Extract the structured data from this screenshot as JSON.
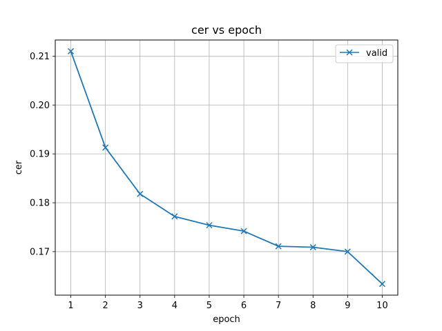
{
  "chart_data": {
    "type": "line",
    "title": "cer vs epoch",
    "xlabel": "epoch",
    "ylabel": "cer",
    "x": [
      1,
      2,
      3,
      4,
      5,
      6,
      7,
      8,
      9,
      10
    ],
    "xticks": [
      "1",
      "2",
      "3",
      "4",
      "5",
      "6",
      "7",
      "8",
      "9",
      "10"
    ],
    "yticks": [
      "0.17",
      "0.18",
      "0.19",
      "0.20",
      "0.21"
    ],
    "xlim": [
      0.55,
      10.45
    ],
    "ylim": [
      0.1611,
      0.2133
    ],
    "grid": true,
    "legend_position": "top-right",
    "series": [
      {
        "name": "valid",
        "color": "#1f77b4",
        "marker": "x",
        "values": [
          0.211,
          0.1913,
          0.1818,
          0.1772,
          0.1754,
          0.1742,
          0.1711,
          0.1709,
          0.17,
          0.1634
        ]
      }
    ]
  }
}
